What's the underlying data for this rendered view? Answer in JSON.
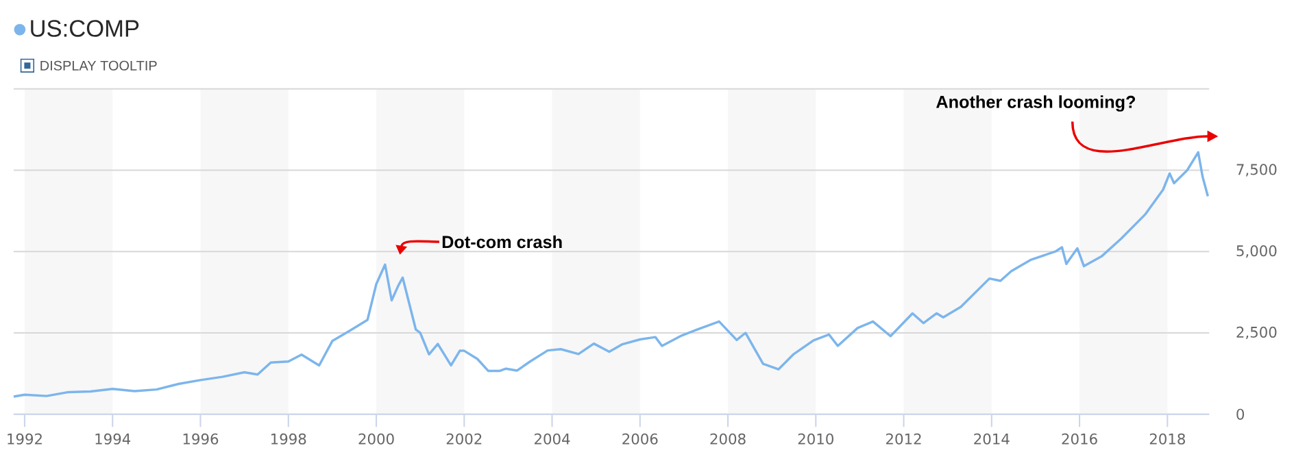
{
  "chart_data": {
    "type": "line",
    "x": [
      1991.75,
      1992.0,
      1992.5,
      1993.0,
      1993.5,
      1994.0,
      1994.5,
      1995.0,
      1995.5,
      1996.0,
      1996.5,
      1997.0,
      1997.3,
      1997.6,
      1998.0,
      1998.3,
      1998.7,
      1999.0,
      1999.5,
      1999.8,
      2000.0,
      2000.2,
      2000.35,
      2000.5,
      2000.6,
      2000.75,
      2000.9,
      2001.0,
      2001.2,
      2001.4,
      2001.7,
      2001.9,
      2002.0,
      2002.3,
      2002.55,
      2002.8,
      2002.95,
      2003.2,
      2003.5,
      2003.9,
      2004.2,
      2004.6,
      2004.95,
      2005.3,
      2005.6,
      2006.0,
      2006.35,
      2006.5,
      2006.95,
      2007.3,
      2007.8,
      2008.2,
      2008.4,
      2008.8,
      2009.15,
      2009.5,
      2009.95,
      2010.3,
      2010.5,
      2010.95,
      2011.3,
      2011.7,
      2012.2,
      2012.45,
      2012.75,
      2012.9,
      2013.3,
      2013.95,
      2014.2,
      2014.45,
      2014.9,
      2015.45,
      2015.6,
      2015.7,
      2015.95,
      2016.1,
      2016.5,
      2016.95,
      2017.5,
      2017.9,
      2018.05,
      2018.15,
      2018.45,
      2018.7,
      2018.8,
      2018.92
    ],
    "series": [
      {
        "name": "US:COMP",
        "color": "#7cb5ec",
        "values": [
          540,
          600,
          560,
          680,
          700,
          780,
          710,
          760,
          930,
          1050,
          1150,
          1290,
          1220,
          1590,
          1620,
          1830,
          1500,
          2250,
          2650,
          2900,
          4000,
          4600,
          3500,
          3950,
          4200,
          3400,
          2600,
          2500,
          1840,
          2160,
          1500,
          1950,
          1950,
          1700,
          1330,
          1330,
          1400,
          1340,
          1620,
          1960,
          2000,
          1850,
          2170,
          1920,
          2150,
          2300,
          2370,
          2100,
          2420,
          2600,
          2850,
          2280,
          2500,
          1550,
          1380,
          1850,
          2270,
          2450,
          2100,
          2650,
          2850,
          2400,
          3100,
          2800,
          3100,
          2980,
          3300,
          4170,
          4100,
          4400,
          4750,
          5000,
          5130,
          4620,
          5100,
          4550,
          4850,
          5400,
          6150,
          6900,
          7400,
          7100,
          7500,
          8050,
          7300,
          6700
        ]
      }
    ],
    "xlim": [
      1991.75,
      2018.95
    ],
    "ylim": [
      0,
      10000
    ],
    "xticks": [
      1992,
      1994,
      1996,
      1998,
      2000,
      2002,
      2004,
      2006,
      2008,
      2010,
      2012,
      2014,
      2016,
      2018
    ],
    "yticks": [
      0,
      {
        "value": 2500,
        "label": "2,500"
      },
      {
        "value": 5000,
        "label": "5,000"
      },
      {
        "value": 7500,
        "label": "7,500"
      },
      {
        "value": 10000,
        "label": null
      }
    ],
    "grid": "y",
    "legend": "top left",
    "bands": [
      {
        "axis": "x",
        "from": 1992,
        "to": 1994,
        "color": "#f7f7f7"
      },
      {
        "axis": "x",
        "from": 1996,
        "to": 1998,
        "color": "#f7f7f7"
      },
      {
        "axis": "x",
        "from": 2000,
        "to": 2002,
        "color": "#f7f7f7"
      },
      {
        "axis": "x",
        "from": 2004,
        "to": 2006,
        "color": "#f7f7f7"
      },
      {
        "axis": "x",
        "from": 2008,
        "to": 2010,
        "color": "#f7f7f7"
      },
      {
        "axis": "x",
        "from": 2012,
        "to": 2014,
        "color": "#f7f7f7"
      },
      {
        "axis": "x",
        "from": 2016,
        "to": 2018,
        "color": "#f7f7f7"
      }
    ],
    "annotations": [
      "DISPLAY TOOLTIP",
      "Dot-com crash",
      "Another crash looming?"
    ]
  }
}
